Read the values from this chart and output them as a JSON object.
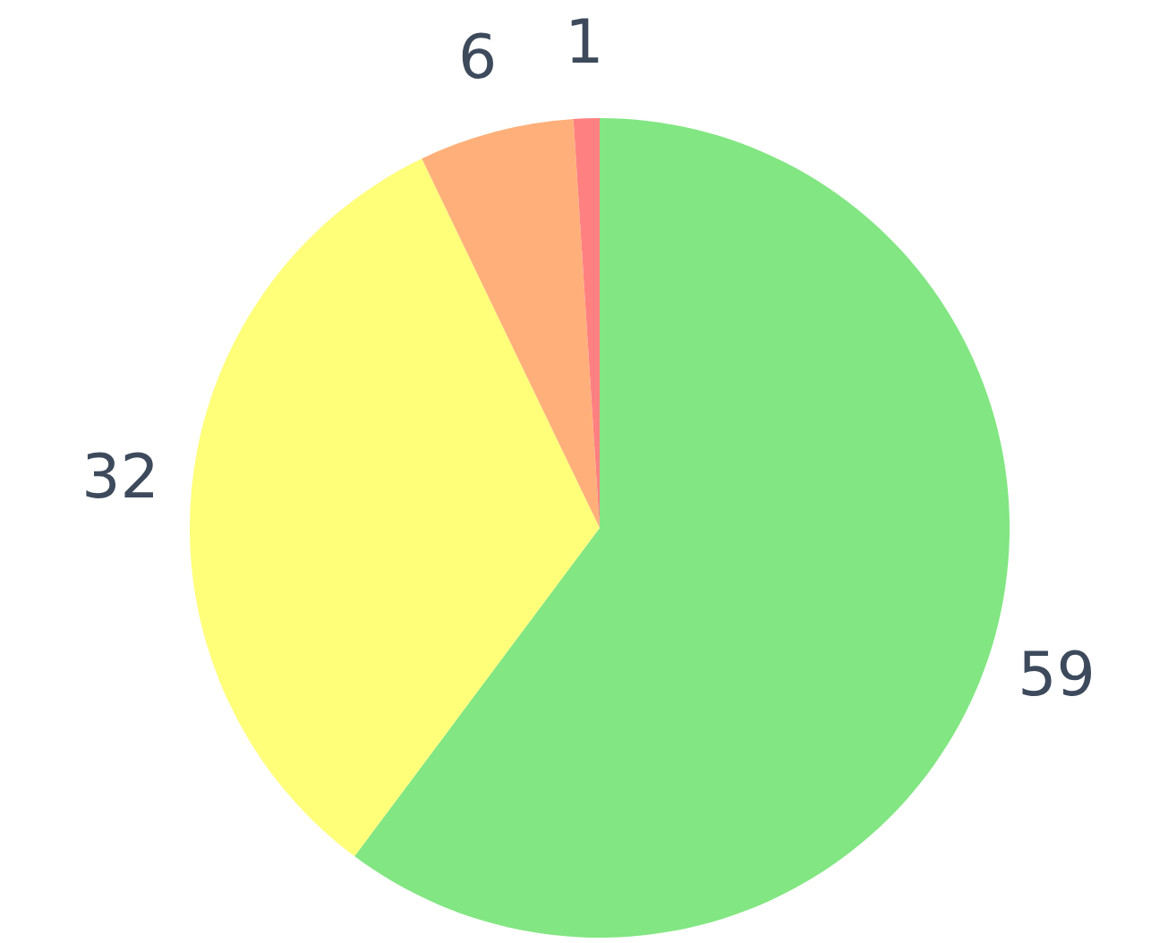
{
  "chart_data": {
    "type": "pie",
    "categories": [
      null,
      null,
      null,
      null
    ],
    "values": [
      59,
      32,
      6,
      1
    ],
    "colors": [
      "#82e682",
      "#ffff7a",
      "#ffb07a",
      "#ff8080"
    ],
    "data_labels": true,
    "legend": false
  }
}
